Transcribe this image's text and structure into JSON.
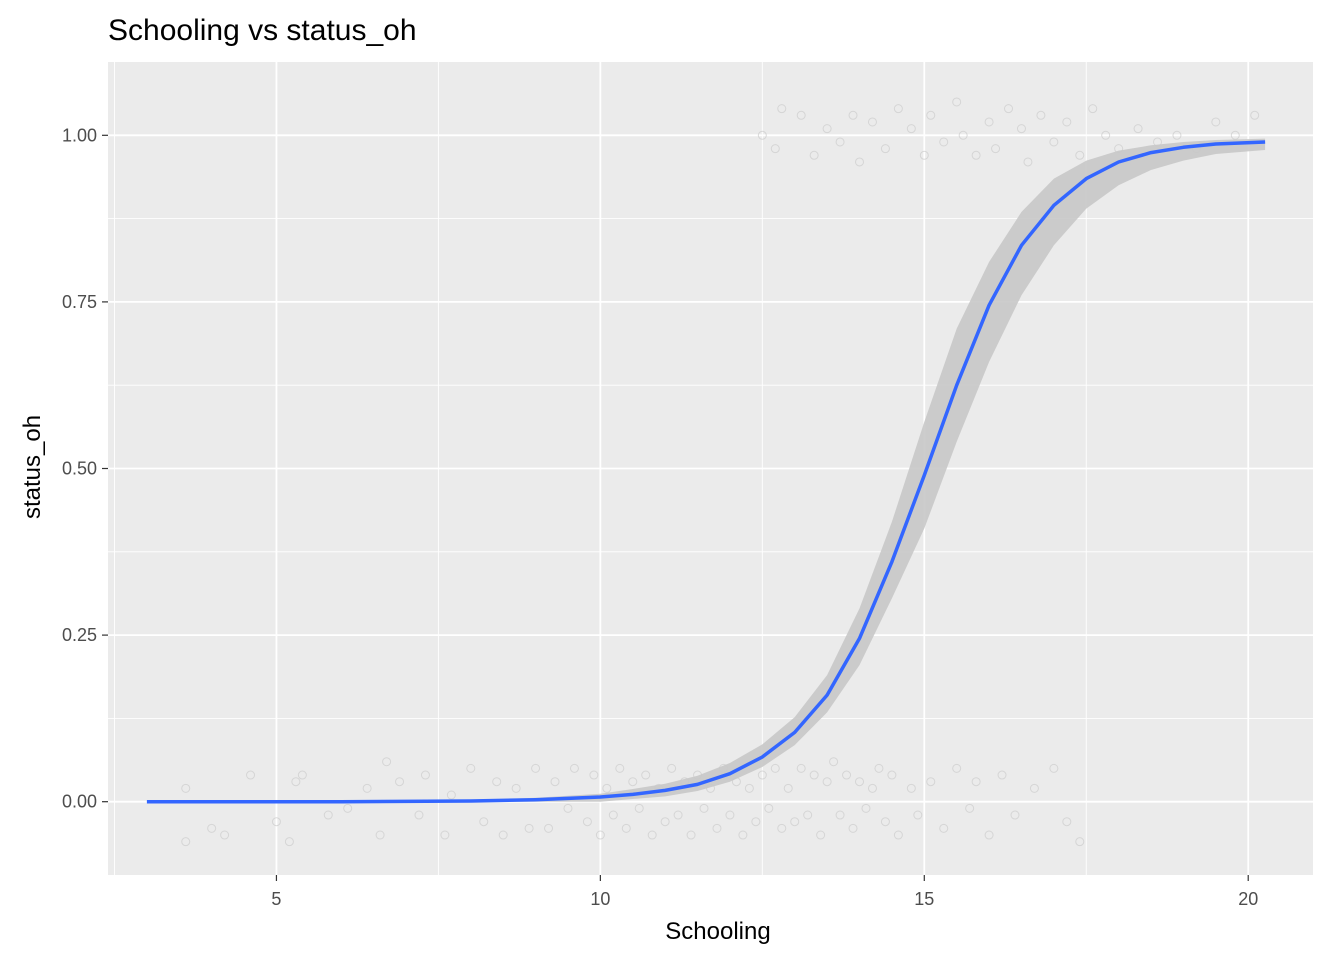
{
  "chart_data": {
    "type": "scatter",
    "title": "Schooling vs status_oh",
    "xlabel": "Schooling",
    "ylabel": "status_oh",
    "xlim": [
      2.4,
      21.0
    ],
    "ylim": [
      -0.11,
      1.11
    ],
    "x_ticks": [
      5,
      10,
      15,
      20
    ],
    "x_tick_labels": [
      "5",
      "10",
      "15",
      "20"
    ],
    "y_ticks": [
      0,
      0.25,
      0.5,
      0.75,
      1
    ],
    "y_tick_labels": [
      "0.00",
      "0.25",
      "0.50",
      "0.75",
      "1.00"
    ],
    "grid": true,
    "legend": "none",
    "colors": {
      "panel_background": "#ebebeb",
      "grid": "#ffffff",
      "fit_line": "#3366ff",
      "confidence_band": "#c8c8c8",
      "points": "#d0d0d0"
    },
    "series": [
      {
        "kind": "points",
        "points": [
          [
            3.6,
            0.02
          ],
          [
            3.6,
            -0.06
          ],
          [
            4.0,
            -0.04
          ],
          [
            4.2,
            -0.05
          ],
          [
            4.6,
            0.04
          ],
          [
            5.0,
            -0.03
          ],
          [
            5.2,
            -0.06
          ],
          [
            5.3,
            0.03
          ],
          [
            5.4,
            0.04
          ],
          [
            5.8,
            -0.02
          ],
          [
            6.1,
            -0.01
          ],
          [
            6.4,
            0.02
          ],
          [
            6.6,
            -0.05
          ],
          [
            6.7,
            0.06
          ],
          [
            6.9,
            0.03
          ],
          [
            7.2,
            -0.02
          ],
          [
            7.3,
            0.04
          ],
          [
            7.6,
            -0.05
          ],
          [
            7.7,
            0.01
          ],
          [
            8.0,
            0.05
          ],
          [
            8.2,
            -0.03
          ],
          [
            8.4,
            0.03
          ],
          [
            8.5,
            -0.05
          ],
          [
            8.7,
            0.02
          ],
          [
            8.9,
            -0.04
          ],
          [
            9.0,
            0.05
          ],
          [
            9.2,
            -0.04
          ],
          [
            9.3,
            0.03
          ],
          [
            9.5,
            -0.01
          ],
          [
            9.6,
            0.05
          ],
          [
            9.8,
            -0.03
          ],
          [
            9.9,
            0.04
          ],
          [
            10.0,
            -0.05
          ],
          [
            10.1,
            0.02
          ],
          [
            10.2,
            -0.02
          ],
          [
            10.3,
            0.05
          ],
          [
            10.4,
            -0.04
          ],
          [
            10.5,
            0.03
          ],
          [
            10.6,
            -0.01
          ],
          [
            10.7,
            0.04
          ],
          [
            10.8,
            -0.05
          ],
          [
            10.9,
            0.02
          ],
          [
            11.0,
            -0.03
          ],
          [
            11.1,
            0.05
          ],
          [
            11.2,
            -0.02
          ],
          [
            11.3,
            0.03
          ],
          [
            11.4,
            -0.05
          ],
          [
            11.5,
            0.04
          ],
          [
            11.6,
            -0.01
          ],
          [
            11.7,
            0.02
          ],
          [
            11.8,
            -0.04
          ],
          [
            11.9,
            0.05
          ],
          [
            12.0,
            -0.02
          ],
          [
            12.1,
            0.03
          ],
          [
            12.2,
            -0.05
          ],
          [
            12.3,
            0.02
          ],
          [
            12.4,
            -0.03
          ],
          [
            12.5,
            0.04
          ],
          [
            12.6,
            -0.01
          ],
          [
            12.7,
            0.05
          ],
          [
            12.8,
            -0.04
          ],
          [
            12.9,
            0.02
          ],
          [
            13.0,
            -0.03
          ],
          [
            13.1,
            0.05
          ],
          [
            13.2,
            -0.02
          ],
          [
            13.3,
            0.04
          ],
          [
            13.4,
            -0.05
          ],
          [
            13.5,
            0.03
          ],
          [
            13.6,
            0.06
          ],
          [
            13.7,
            -0.02
          ],
          [
            13.8,
            0.04
          ],
          [
            13.9,
            -0.04
          ],
          [
            14.0,
            0.03
          ],
          [
            14.1,
            -0.01
          ],
          [
            14.2,
            0.02
          ],
          [
            14.3,
            0.05
          ],
          [
            14.4,
            -0.03
          ],
          [
            14.5,
            0.04
          ],
          [
            14.6,
            -0.05
          ],
          [
            14.8,
            0.02
          ],
          [
            14.9,
            -0.02
          ],
          [
            15.1,
            0.03
          ],
          [
            15.3,
            -0.04
          ],
          [
            15.5,
            0.05
          ],
          [
            15.7,
            -0.01
          ],
          [
            15.8,
            0.03
          ],
          [
            16.0,
            -0.05
          ],
          [
            16.2,
            0.04
          ],
          [
            16.4,
            -0.02
          ],
          [
            16.7,
            0.02
          ],
          [
            17.0,
            0.05
          ],
          [
            17.2,
            -0.03
          ],
          [
            17.4,
            -0.06
          ],
          [
            12.5,
            1.0
          ],
          [
            12.7,
            0.98
          ],
          [
            12.8,
            1.04
          ],
          [
            13.1,
            1.03
          ],
          [
            13.3,
            0.97
          ],
          [
            13.5,
            1.01
          ],
          [
            13.7,
            0.99
          ],
          [
            13.9,
            1.03
          ],
          [
            14.0,
            0.96
          ],
          [
            14.2,
            1.02
          ],
          [
            14.4,
            0.98
          ],
          [
            14.6,
            1.04
          ],
          [
            14.8,
            1.01
          ],
          [
            15.0,
            0.97
          ],
          [
            15.1,
            1.03
          ],
          [
            15.3,
            0.99
          ],
          [
            15.5,
            1.05
          ],
          [
            15.6,
            1.0
          ],
          [
            15.8,
            0.97
          ],
          [
            16.0,
            1.02
          ],
          [
            16.1,
            0.98
          ],
          [
            16.3,
            1.04
          ],
          [
            16.5,
            1.01
          ],
          [
            16.6,
            0.96
          ],
          [
            16.8,
            1.03
          ],
          [
            17.0,
            0.99
          ],
          [
            17.2,
            1.02
          ],
          [
            17.4,
            0.97
          ],
          [
            17.6,
            1.04
          ],
          [
            17.8,
            1.0
          ],
          [
            18.0,
            0.98
          ],
          [
            18.3,
            1.01
          ],
          [
            18.6,
            0.99
          ],
          [
            18.9,
            1.0
          ],
          [
            19.2,
            0.98
          ],
          [
            19.5,
            1.02
          ],
          [
            19.8,
            1.0
          ],
          [
            20.1,
            1.03
          ]
        ]
      },
      {
        "kind": "fit_line",
        "x": [
          3.0,
          6.0,
          8.0,
          9.0,
          10.0,
          10.5,
          11.0,
          11.5,
          12.0,
          12.5,
          13.0,
          13.5,
          14.0,
          14.5,
          15.0,
          15.5,
          16.0,
          16.5,
          17.0,
          17.5,
          18.0,
          18.5,
          19.0,
          19.5,
          20.26
        ],
        "y": [
          0.0,
          0.0,
          0.001,
          0.003,
          0.007,
          0.011,
          0.017,
          0.026,
          0.042,
          0.067,
          0.104,
          0.16,
          0.245,
          0.36,
          0.49,
          0.625,
          0.745,
          0.835,
          0.895,
          0.935,
          0.96,
          0.974,
          0.982,
          0.987,
          0.99
        ],
        "lower": [
          0.0,
          0.0,
          0.0,
          0.0,
          0.0,
          0.004,
          0.008,
          0.016,
          0.03,
          0.052,
          0.085,
          0.134,
          0.205,
          0.305,
          0.41,
          0.54,
          0.66,
          0.76,
          0.835,
          0.89,
          0.925,
          0.948,
          0.962,
          0.972,
          0.978
        ],
        "upper": [
          0.001,
          0.001,
          0.002,
          0.006,
          0.012,
          0.019,
          0.027,
          0.039,
          0.058,
          0.086,
          0.127,
          0.19,
          0.29,
          0.42,
          0.57,
          0.71,
          0.81,
          0.885,
          0.935,
          0.962,
          0.977,
          0.985,
          0.99,
          0.993,
          0.995
        ]
      }
    ]
  }
}
